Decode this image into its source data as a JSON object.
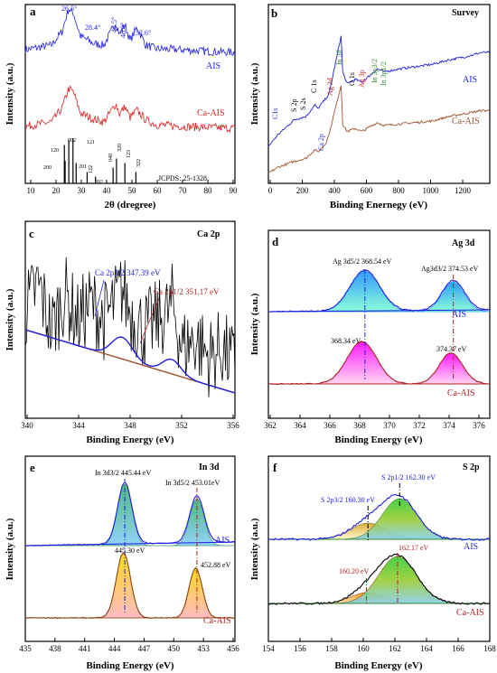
{
  "colors": {
    "blue": "#1f1fe0",
    "red": "#e02020",
    "brown": "#a0522d",
    "black": "#000000",
    "green": "#2e8b2e",
    "darkred": "#b22222"
  },
  "panels": {
    "a": {
      "letter": "a",
      "xlabel": "2θ (dregree)",
      "ylabel": "Intensity (a.u.)",
      "ticks": [
        "10",
        "20",
        "30",
        "40",
        "50",
        "60",
        "70",
        "80",
        "90"
      ],
      "label_ais": "AIS",
      "label_ca": "Ca-AIS",
      "peaks": [
        "26.5°",
        "28.4°",
        "44.5°",
        "48.0°",
        "52.6°"
      ],
      "hkl": [
        "120",
        "200",
        "002",
        "201",
        "121",
        "122",
        "202",
        "040",
        "320",
        "123",
        "322"
      ],
      "jcpds": "JCPDS: 25-1328"
    },
    "b": {
      "letter": "b",
      "title": "Survey",
      "xlabel": "Binding Enernegy (eV)",
      "ylabel": "Intensity (a.u.)",
      "ticks": [
        "0",
        "200",
        "400",
        "600",
        "800",
        "1000",
        "1200"
      ],
      "label_ais": "AIS",
      "label_ca": "Ca-AIS",
      "blue_labels": [
        "C1s",
        "S 2p",
        "S 2s",
        "C 1s",
        "Ca 2p",
        "O 1s"
      ],
      "red_labels": [
        "Ag 3d",
        "Ag 3p"
      ],
      "green_labels": [
        "In 3d",
        "In 3p3/2",
        "In 3p1/2"
      ]
    },
    "c": {
      "letter": "c",
      "title": "Ca 2p",
      "xlabel": "Binding Energy (eV)",
      "ylabel": "Intensity (a.u.)",
      "ticks": [
        "340",
        "344",
        "348",
        "352",
        "356"
      ],
      "peak1": "Ca 2p3/2 347.39 eV",
      "peak2": "Ca 2p1/2 351.17 eV"
    },
    "d": {
      "letter": "d",
      "title": "Ag 3d",
      "xlabel": "Binding Energy (eV)",
      "ylabel": "Intensity (a.u.)",
      "ticks": [
        "362",
        "364",
        "366",
        "368",
        "370",
        "372",
        "374",
        "376"
      ],
      "ais_p1": "Ag 3d5/2 368.54 eV",
      "ais_p2": "Ag3d3/2 374.53 eV",
      "ca_p1": "368.34 eV",
      "ca_p2": "374.37 eV",
      "label_ais": "AIS",
      "label_ca": "Ca-AIS"
    },
    "e": {
      "letter": "e",
      "title": "In 3d",
      "xlabel": "Binding Energy (eV)",
      "ylabel": "Intensity (a.u.)",
      "ticks": [
        "435",
        "438",
        "441",
        "444",
        "447",
        "450",
        "453",
        "456"
      ],
      "ais_p1": "In 3d3/2 445.44 eV",
      "ais_p2": "In 3d5/2 453.01eV",
      "ca_p1": "445.30 eV",
      "ca_p2": "452.88 eV",
      "label_ais": "AIS",
      "label_ca": "Ca-AIS"
    },
    "f": {
      "letter": "f",
      "title": "S 2p",
      "xlabel": "Binding Energy (eV)",
      "ylabel": "Intensity (a.u.)",
      "ticks": [
        "154",
        "156",
        "158",
        "160",
        "162",
        "164",
        "166",
        "168"
      ],
      "ais_p1": "S 2p3/2 160.30 eV",
      "ais_p2": "S 2p1/2 162.30 eV",
      "ca_p1": "160.20 eV",
      "ca_p2": "162.17 eV",
      "label_ais": "AIS",
      "label_ca": "Ca-AIS"
    }
  },
  "chart_data": [
    {
      "type": "line",
      "panel": "a",
      "xlabel": "2θ (dregree)",
      "ylabel": "Intensity (a.u.)",
      "xlim": [
        10,
        90
      ],
      "series": [
        {
          "name": "AIS",
          "x": [
            10,
            20,
            24,
            26.5,
            28.4,
            31,
            36,
            40,
            44.5,
            46,
            48,
            50,
            52.6,
            56,
            60,
            70,
            80,
            90
          ],
          "values": [
            0.55,
            0.6,
            0.75,
            1.0,
            0.95,
            0.7,
            0.62,
            0.6,
            0.85,
            0.72,
            0.83,
            0.65,
            0.8,
            0.6,
            0.56,
            0.55,
            0.53,
            0.52
          ]
        },
        {
          "name": "Ca-AIS",
          "x": [
            10,
            20,
            24,
            26.5,
            28.4,
            31,
            36,
            40,
            44.5,
            46,
            48,
            50,
            52.6,
            56,
            60,
            70,
            80,
            90
          ],
          "values": [
            0.2,
            0.25,
            0.4,
            0.62,
            0.58,
            0.35,
            0.28,
            0.25,
            0.45,
            0.34,
            0.42,
            0.3,
            0.38,
            0.27,
            0.22,
            0.2,
            0.19,
            0.18
          ]
        }
      ],
      "reference_lines": [
        {
          "x": 24.9,
          "hkl": "120",
          "height": 0.85
        },
        {
          "x": 25.2,
          "hkl": "200",
          "height": 0.5
        },
        {
          "x": 26.6,
          "hkl": "002",
          "height": 0.95
        },
        {
          "x": 28.2,
          "hkl": "121",
          "height": 1.0
        },
        {
          "x": 29.4,
          "hkl": "201",
          "height": 0.45
        },
        {
          "x": 33.6,
          "hkl": "122",
          "height": 0.25
        },
        {
          "x": 36.8,
          "hkl": "202",
          "height": 0.15
        },
        {
          "x": 43.5,
          "hkl": "040",
          "height": 0.35
        },
        {
          "x": 44.8,
          "hkl": "320",
          "height": 0.55
        },
        {
          "x": 48.0,
          "hkl": "123",
          "height": 0.45
        },
        {
          "x": 52.2,
          "hkl": "322",
          "height": 0.25
        }
      ]
    },
    {
      "type": "line",
      "panel": "b",
      "xlabel": "Binding Enernegy (eV)",
      "ylabel": "Intensity (a.u.)",
      "xlim": [
        0,
        1350
      ],
      "series": [
        {
          "name": "AIS",
          "x": [
            0,
            60,
            160,
            230,
            285,
            300,
            370,
            445,
            452,
            480,
            530,
            570,
            665,
            705,
            800,
            1000,
            1100,
            1200,
            1300
          ],
          "values": [
            0.2,
            0.28,
            0.38,
            0.4,
            0.48,
            0.45,
            0.55,
            0.95,
            0.7,
            0.62,
            0.65,
            0.63,
            0.72,
            0.7,
            0.72,
            0.75,
            0.78,
            0.8,
            0.83
          ]
        },
        {
          "name": "Ca-AIS",
          "x": [
            0,
            60,
            160,
            230,
            285,
            300,
            350,
            370,
            445,
            452,
            480,
            530,
            570,
            665,
            705,
            800,
            1000,
            1100,
            1200,
            1300
          ],
          "values": [
            0.02,
            0.06,
            0.1,
            0.12,
            0.18,
            0.16,
            0.22,
            0.28,
            0.62,
            0.35,
            0.3,
            0.32,
            0.3,
            0.36,
            0.34,
            0.35,
            0.37,
            0.4,
            0.42,
            0.44
          ]
        }
      ]
    },
    {
      "type": "line",
      "panel": "c",
      "xlabel": "Binding Energy (eV)",
      "ylabel": "Intensity (a.u.)",
      "xlim": [
        340,
        356
      ],
      "series": [
        {
          "name": "Raw",
          "x": [
            340,
            341,
            342,
            343,
            344,
            345,
            346,
            347,
            347.4,
            348,
            349,
            350,
            351,
            351.2,
            352,
            353,
            354,
            355,
            356
          ],
          "values": [
            0.55,
            0.7,
            0.45,
            0.65,
            0.5,
            0.6,
            0.5,
            0.62,
            0.68,
            0.55,
            0.45,
            0.5,
            0.55,
            0.6,
            0.35,
            0.4,
            0.3,
            0.35,
            0.25
          ]
        },
        {
          "name": "Background",
          "x": [
            340,
            356
          ],
          "values": [
            0.45,
            0.1
          ]
        }
      ]
    },
    {
      "type": "line",
      "panel": "d",
      "xlabel": "Binding Energy (eV)",
      "ylabel": "Intensity (a.u.)",
      "xlim": [
        362,
        377
      ],
      "series": [
        {
          "name": "AIS",
          "x": [
            362,
            364,
            366,
            367,
            368.54,
            370,
            372,
            373.5,
            374.53,
            375.5,
            377
          ],
          "values": [
            0.58,
            0.59,
            0.62,
            0.72,
            0.95,
            0.65,
            0.61,
            0.68,
            0.83,
            0.62,
            0.6
          ]
        },
        {
          "name": "Ca-AIS",
          "x": [
            362,
            364,
            366,
            367,
            368.34,
            370,
            372,
            373.5,
            374.37,
            375.5,
            377
          ],
          "values": [
            0.08,
            0.09,
            0.12,
            0.25,
            0.45,
            0.14,
            0.11,
            0.22,
            0.34,
            0.12,
            0.1
          ]
        }
      ]
    },
    {
      "type": "line",
      "panel": "e",
      "xlabel": "Binding Energy (eV)",
      "ylabel": "Intensity (a.u.)",
      "xlim": [
        435,
        457
      ],
      "series": [
        {
          "name": "AIS",
          "x": [
            435,
            440,
            443,
            444.5,
            445.44,
            446.5,
            448,
            450,
            452,
            453.01,
            454,
            457
          ],
          "values": [
            0.5,
            0.52,
            0.58,
            0.8,
            0.98,
            0.75,
            0.6,
            0.6,
            0.7,
            0.88,
            0.65,
            0.66
          ]
        },
        {
          "name": "Ca-AIS",
          "x": [
            435,
            440,
            443,
            444.5,
            445.3,
            446.5,
            448,
            450,
            452,
            452.88,
            454,
            457
          ],
          "values": [
            0.05,
            0.06,
            0.12,
            0.35,
            0.48,
            0.3,
            0.12,
            0.12,
            0.22,
            0.36,
            0.15,
            0.16
          ]
        }
      ]
    },
    {
      "type": "line",
      "panel": "f",
      "xlabel": "Binding Energy (eV)",
      "ylabel": "Intensity (a.u.)",
      "xlim": [
        154,
        168
      ],
      "series": [
        {
          "name": "AIS",
          "x": [
            154,
            157,
            159,
            160.3,
            161,
            162.3,
            163.5,
            165,
            168
          ],
          "values": [
            0.65,
            0.66,
            0.72,
            0.8,
            0.88,
            0.92,
            0.85,
            0.7,
            0.68
          ]
        },
        {
          "name": "Ca-AIS",
          "x": [
            154,
            157,
            159,
            160.2,
            161,
            162.17,
            163.5,
            165,
            168
          ],
          "values": [
            0.15,
            0.16,
            0.22,
            0.3,
            0.38,
            0.42,
            0.35,
            0.2,
            0.18
          ]
        }
      ]
    }
  ]
}
